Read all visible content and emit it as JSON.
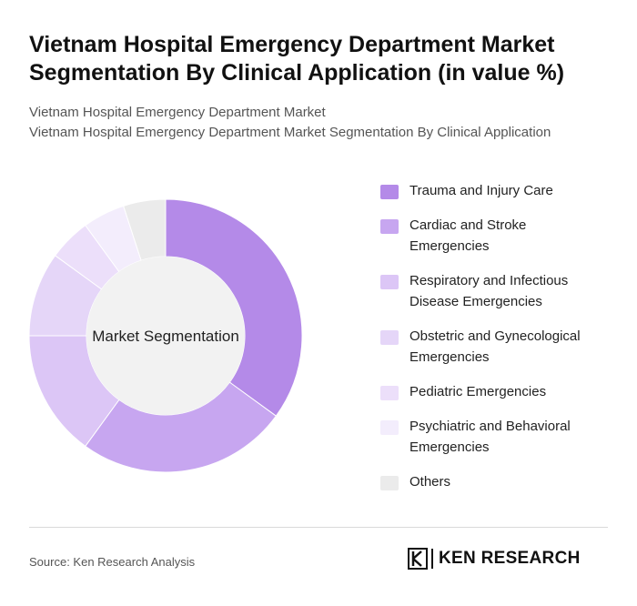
{
  "header": {
    "title": "Vietnam Hospital Emergency Department Market Segmentation By Clinical Application (in value %)",
    "subtitle_line1": "Vietnam Hospital Emergency Department Market",
    "subtitle_line2": "Vietnam Hospital Emergency Department Market Segmentation By Clinical Application"
  },
  "chart_data": {
    "type": "pie",
    "donut": true,
    "center_label": "Market Segmentation",
    "legend_position": "right",
    "categories": [
      "Trauma and Injury Care",
      "Cardiac and Stroke Emergencies",
      "Respiratory and Infectious Disease Emergencies",
      "Obstetric and Gynecological Emergencies",
      "Pediatric Emergencies",
      "Psychiatric and Behavioral Emergencies",
      "Others"
    ],
    "values": [
      35,
      25,
      15,
      10,
      5,
      5,
      5
    ],
    "colors": [
      "#b48ae8",
      "#c7a6f0",
      "#dcc6f6",
      "#e5d6f8",
      "#ecdffa",
      "#f3edfc",
      "#ebebeb"
    ]
  },
  "footer": {
    "source": "Source: Ken Research Analysis",
    "logo_text": "KEN RESEARCH"
  }
}
